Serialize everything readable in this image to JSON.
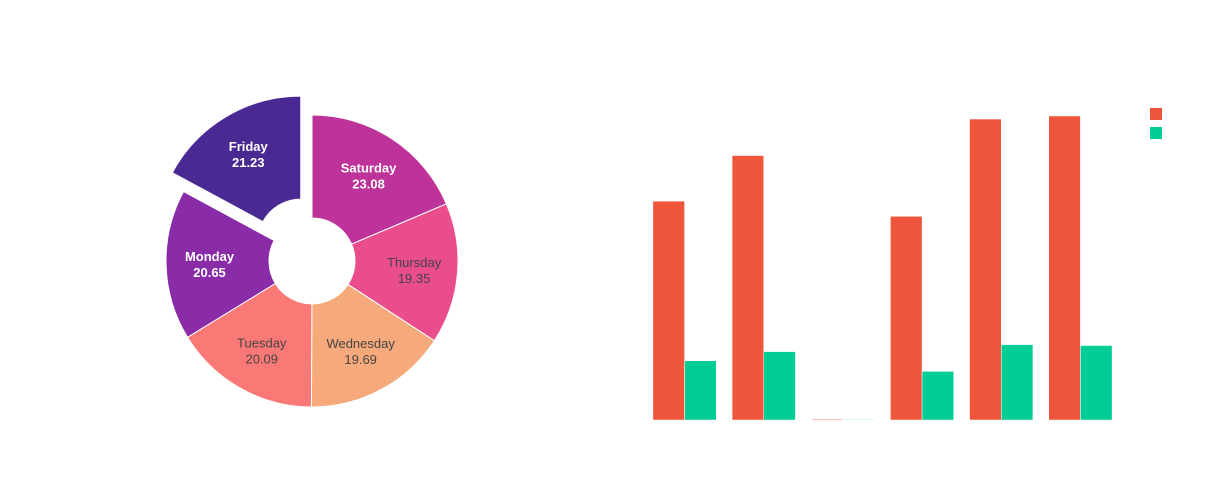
{
  "chart_data": [
    {
      "type": "pie",
      "hole": true,
      "slices": [
        {
          "label": "Saturday",
          "value": 23.08,
          "color": "#bd3399",
          "text_color": "#ffffff",
          "bold": true,
          "pulled": false
        },
        {
          "label": "Thursday",
          "value": 19.35,
          "color": "#e94d8b",
          "text_color": "#444444",
          "bold": false,
          "pulled": false
        },
        {
          "label": "Wednesday",
          "value": 19.69,
          "color": "#f6a97a",
          "text_color": "#444444",
          "bold": false,
          "pulled": false
        },
        {
          "label": "Tuesday",
          "value": 20.09,
          "color": "#fa7876",
          "text_color": "#444444",
          "bold": false,
          "pulled": false
        },
        {
          "label": "Monday",
          "value": 20.65,
          "color": "#8a2ca7",
          "text_color": "#ffffff",
          "bold": true,
          "pulled": false
        },
        {
          "label": "Friday",
          "value": 21.23,
          "color": "#4a2993",
          "text_color": "#ffffff",
          "bold": true,
          "pulled": true
        }
      ]
    },
    {
      "type": "bar",
      "categories": [
        "",
        "",
        "",
        "",
        "",
        ""
      ],
      "series": [
        {
          "color": "#ef553b",
          "values": [
            72,
            87,
            0.3,
            67,
            99,
            100
          ]
        },
        {
          "color": "#00cc96",
          "values": [
            19.5,
            22.5,
            0.2,
            16,
            24.8,
            24.5
          ]
        }
      ],
      "ylim": [
        0,
        100
      ],
      "legend": "top-right"
    }
  ]
}
